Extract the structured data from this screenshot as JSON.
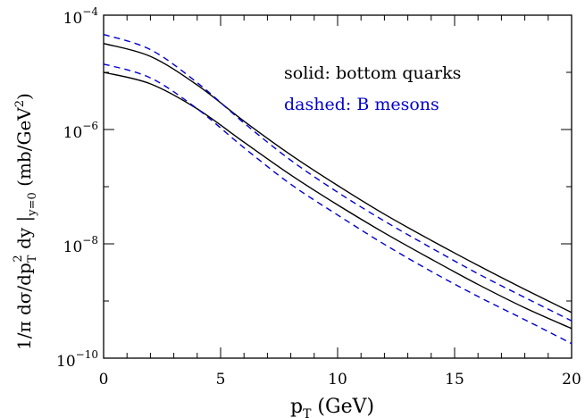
{
  "chart_data": {
    "type": "line",
    "xlabel": {
      "main": "p",
      "sub": "T",
      "rest": " (GeV)"
    },
    "ylabel": {
      "p1": "1/π dσ/dp",
      "p1_sub": "T",
      "p1_sup": "2",
      "p2": " dy |",
      "p2_sub": "y=0",
      "p3": " (mb/GeV",
      "p3_sup": "2",
      "p4": ")"
    },
    "xlim": [
      0,
      20
    ],
    "ylim": [
      1e-10,
      0.0001
    ],
    "yscale": "log",
    "xticks": [
      "0",
      "5",
      "10",
      "15",
      "20"
    ],
    "yticks": [
      {
        "base": "10",
        "exp": "−4"
      },
      {
        "base": "10",
        "exp": "−6"
      },
      {
        "base": "10",
        "exp": "−8"
      },
      {
        "base": "10",
        "exp": "−10"
      }
    ],
    "legend": {
      "solid": "solid: bottom quarks",
      "dashed": "dashed: B mesons",
      "placement": "top-right"
    },
    "colors": {
      "solid": "#000000",
      "dashed": "#0000cc"
    },
    "x": [
      0,
      2,
      4,
      6,
      8,
      10,
      12,
      14,
      16,
      18,
      20
    ],
    "series": [
      {
        "style": "solid",
        "color": "#000000",
        "values": [
          3.2e-05,
          1.9e-05,
          6e-06,
          1.4e-06,
          3.6e-07,
          1.05e-07,
          3.3e-08,
          1.15e-08,
          4.2e-09,
          1.6e-09,
          6.3e-10
        ]
      },
      {
        "style": "solid",
        "color": "#000000",
        "values": [
          1e-05,
          6.3e-06,
          2.3e-06,
          6e-07,
          1.6e-07,
          4.8e-08,
          1.55e-08,
          5.4e-09,
          1.95e-09,
          7.6e-10,
          3.3e-10
        ]
      },
      {
        "style": "dashed",
        "color": "#0000cc",
        "values": [
          4.6e-05,
          2.5e-05,
          6.6e-06,
          1.3e-06,
          2.9e-07,
          8e-08,
          2.5e-08,
          8.5e-09,
          3e-09,
          1.15e-09,
          4.5e-10
        ]
      },
      {
        "style": "dashed",
        "color": "#0000cc",
        "values": [
          1.4e-05,
          8e-06,
          2.3e-06,
          4.8e-07,
          1.1e-07,
          3.2e-08,
          9.8e-09,
          3.3e-09,
          1.2e-09,
          4.7e-10,
          1.8e-10
        ]
      }
    ]
  }
}
